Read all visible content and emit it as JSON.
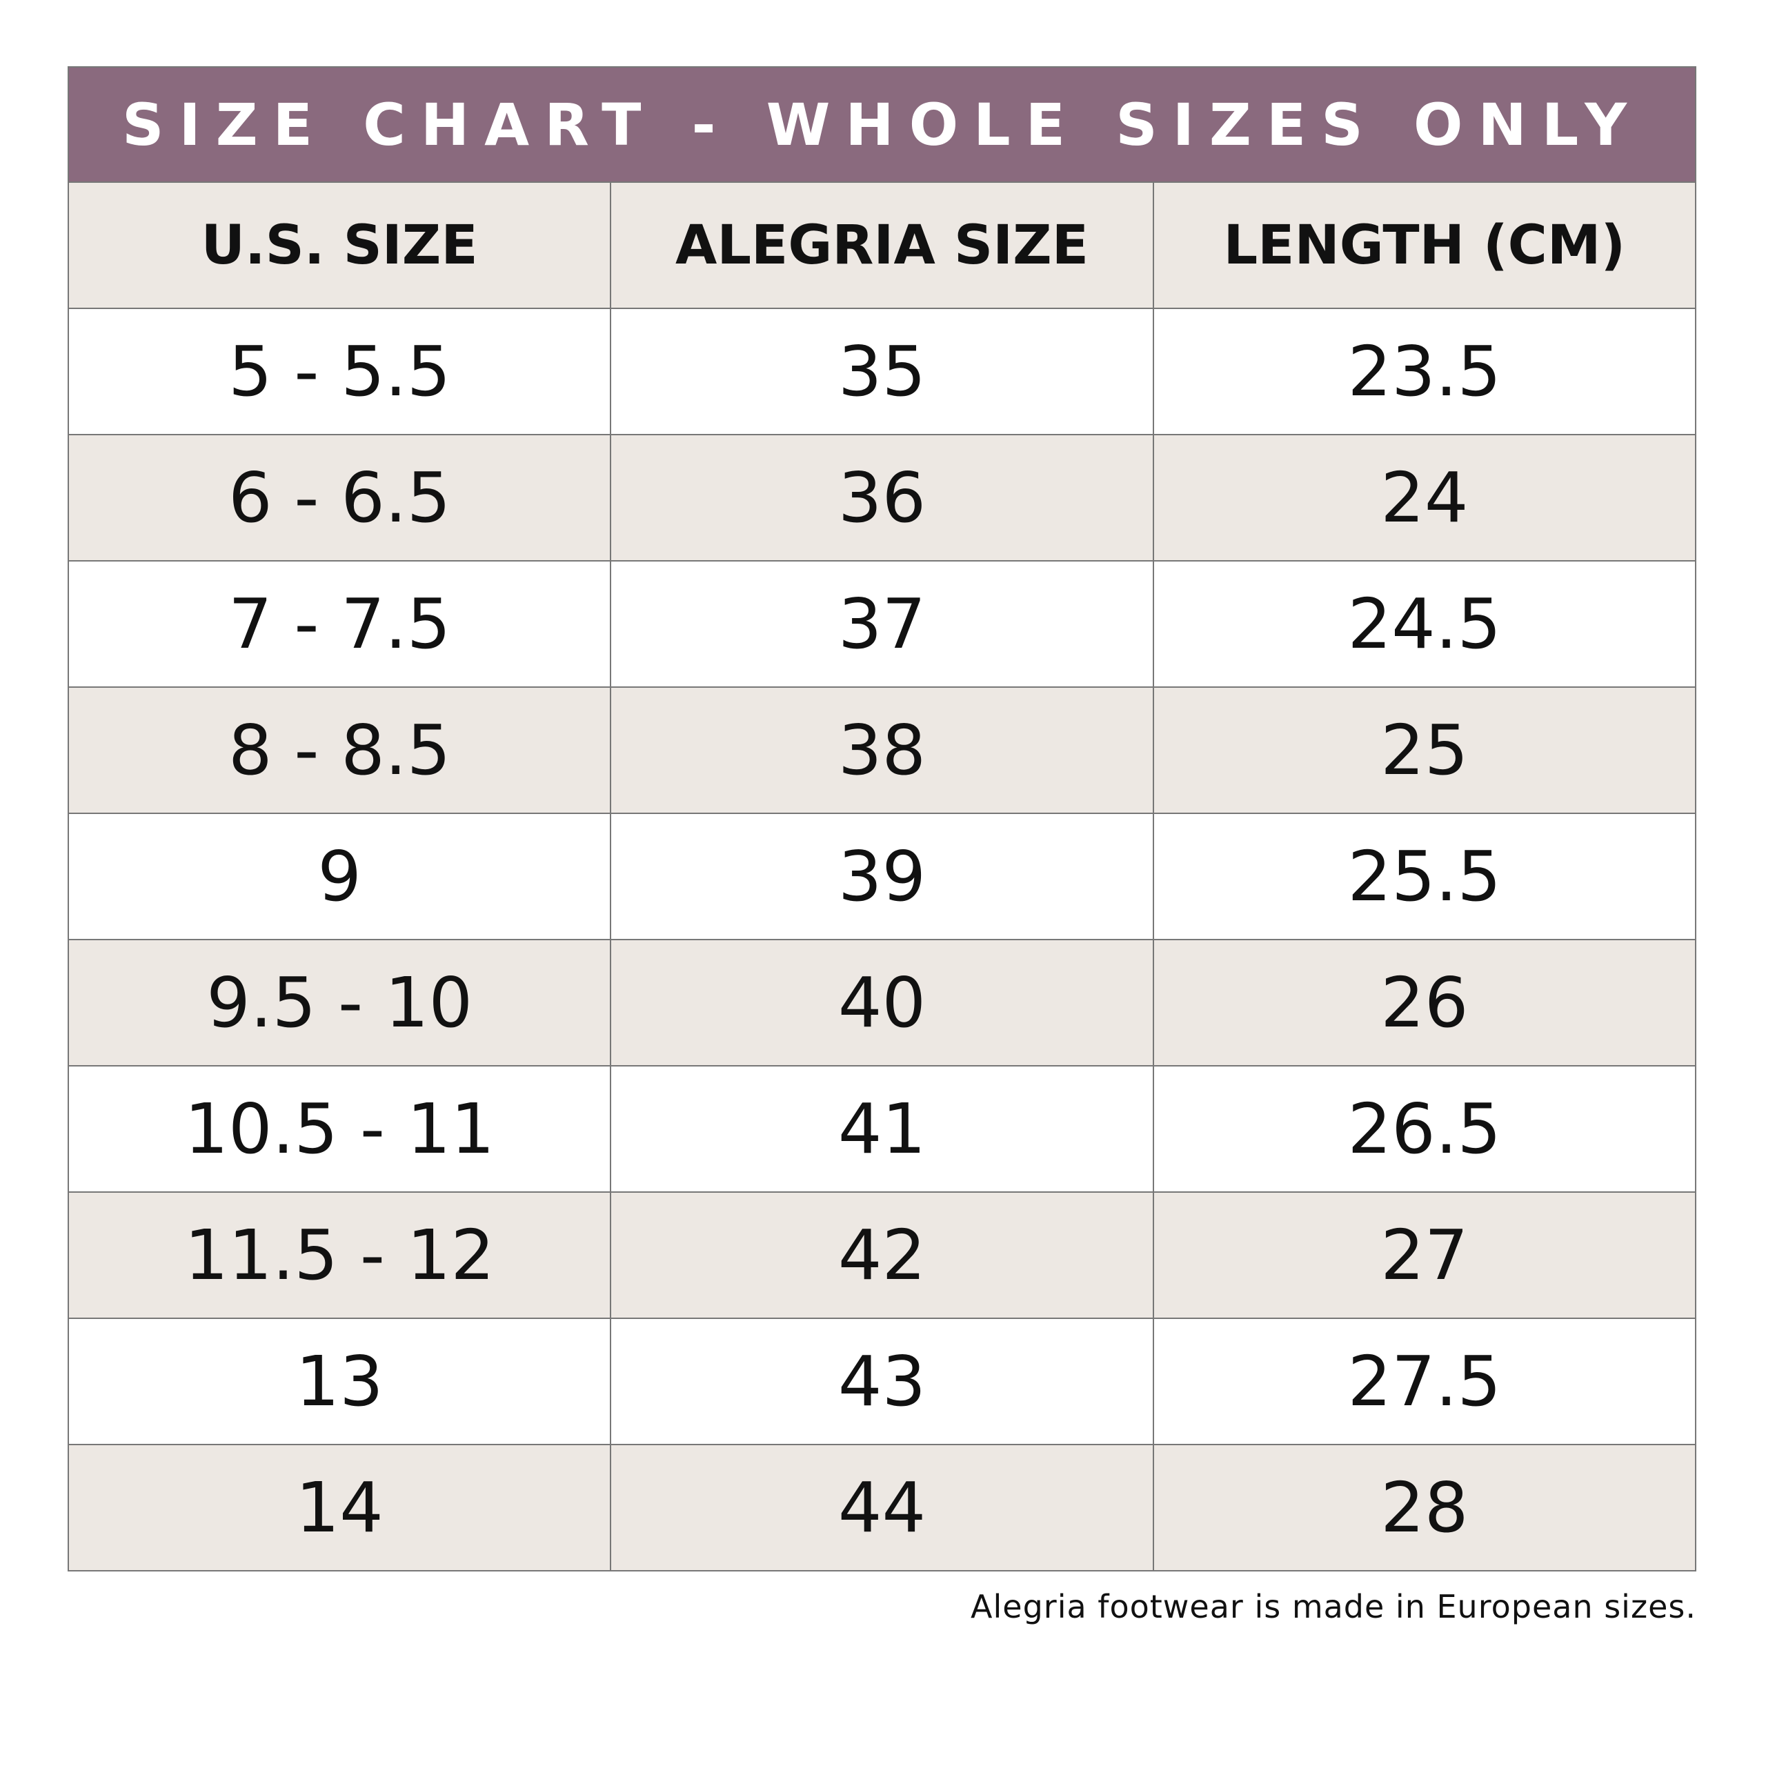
{
  "header": {
    "title": "SIZE CHART - WHOLE SIZES ONLY"
  },
  "table": {
    "columns": [
      "U.S. SIZE",
      "ALEGRIA SIZE",
      "LENGTH (CM)"
    ],
    "rows": [
      [
        "5 - 5.5",
        35,
        23.5
      ],
      [
        "6 - 6.5",
        36,
        24
      ],
      [
        "7 - 7.5",
        37,
        24.5
      ],
      [
        "8 - 8.5",
        38,
        25
      ],
      [
        "9",
        39,
        25.5
      ],
      [
        "9.5 - 10",
        40,
        26
      ],
      [
        "10.5 - 11",
        41,
        26.5
      ],
      [
        "11.5 - 12",
        42,
        27
      ],
      [
        "13",
        43,
        27.5
      ],
      [
        "14",
        44,
        28
      ]
    ]
  },
  "footnote": "Alegria footwear is made in European sizes."
}
